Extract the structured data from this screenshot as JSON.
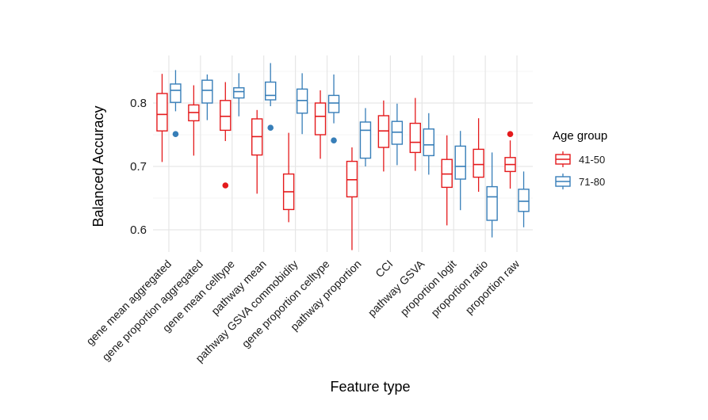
{
  "chart_data": {
    "type": "boxplot",
    "xlabel": "Feature type",
    "ylabel": "Balanced Accuracy",
    "ylim": [
      0.565,
      0.875
    ],
    "yticks": [
      0.6,
      0.7,
      0.8
    ],
    "grid": true,
    "legend": {
      "title": "Age group",
      "placement": "right",
      "entries": [
        {
          "label": "41-50",
          "color": "#E41A1C"
        },
        {
          "label": "71-80",
          "color": "#377EB8"
        }
      ]
    },
    "categories": [
      "gene mean aggregated",
      "gene proportion aggregated",
      "gene mean celltype",
      "pathway mean",
      "pathway GSVA commobidity",
      "gene proportion celltype",
      "pathway proportion",
      "CCI",
      "pathway GSVA",
      "proportion logit",
      "proportion ratio",
      "proportion raw"
    ],
    "series": [
      {
        "name": "41-50",
        "color": "#E41A1C",
        "boxes": [
          {
            "min": 0.707,
            "q1": 0.756,
            "median": 0.782,
            "q3": 0.815,
            "max": 0.846,
            "outliers": []
          },
          {
            "min": 0.717,
            "q1": 0.772,
            "median": 0.785,
            "q3": 0.797,
            "max": 0.828,
            "outliers": []
          },
          {
            "min": 0.74,
            "q1": 0.757,
            "median": 0.779,
            "q3": 0.804,
            "max": 0.833,
            "outliers": [
              0.67
            ]
          },
          {
            "min": 0.657,
            "q1": 0.718,
            "median": 0.747,
            "q3": 0.775,
            "max": 0.789,
            "outliers": []
          },
          {
            "min": 0.612,
            "q1": 0.632,
            "median": 0.66,
            "q3": 0.688,
            "max": 0.753,
            "outliers": []
          },
          {
            "min": 0.712,
            "q1": 0.75,
            "median": 0.779,
            "q3": 0.8,
            "max": 0.82,
            "outliers": []
          },
          {
            "min": 0.568,
            "q1": 0.652,
            "median": 0.679,
            "q3": 0.708,
            "max": 0.73,
            "outliers": []
          },
          {
            "min": 0.692,
            "q1": 0.73,
            "median": 0.756,
            "q3": 0.78,
            "max": 0.804,
            "outliers": []
          },
          {
            "min": 0.693,
            "q1": 0.722,
            "median": 0.738,
            "q3": 0.768,
            "max": 0.808,
            "outliers": []
          },
          {
            "min": 0.607,
            "q1": 0.667,
            "median": 0.688,
            "q3": 0.711,
            "max": 0.749,
            "outliers": []
          },
          {
            "min": 0.66,
            "q1": 0.683,
            "median": 0.703,
            "q3": 0.727,
            "max": 0.776,
            "outliers": []
          },
          {
            "min": 0.665,
            "q1": 0.692,
            "median": 0.703,
            "q3": 0.714,
            "max": 0.741,
            "outliers": [
              0.751
            ]
          }
        ]
      },
      {
        "name": "71-80",
        "color": "#377EB8",
        "boxes": [
          {
            "min": 0.787,
            "q1": 0.801,
            "median": 0.82,
            "q3": 0.83,
            "max": 0.852,
            "outliers": [
              0.751
            ]
          },
          {
            "min": 0.773,
            "q1": 0.8,
            "median": 0.82,
            "q3": 0.836,
            "max": 0.845,
            "outliers": []
          },
          {
            "min": 0.779,
            "q1": 0.808,
            "median": 0.818,
            "q3": 0.824,
            "max": 0.847,
            "outliers": []
          },
          {
            "min": 0.795,
            "q1": 0.805,
            "median": 0.812,
            "q3": 0.833,
            "max": 0.863,
            "outliers": [
              0.761
            ]
          },
          {
            "min": 0.751,
            "q1": 0.784,
            "median": 0.804,
            "q3": 0.822,
            "max": 0.847,
            "outliers": []
          },
          {
            "min": 0.768,
            "q1": 0.785,
            "median": 0.8,
            "q3": 0.812,
            "max": 0.845,
            "outliers": [
              0.741
            ]
          },
          {
            "min": 0.7,
            "q1": 0.713,
            "median": 0.757,
            "q3": 0.77,
            "max": 0.792,
            "outliers": []
          },
          {
            "min": 0.702,
            "q1": 0.735,
            "median": 0.754,
            "q3": 0.771,
            "max": 0.799,
            "outliers": []
          },
          {
            "min": 0.687,
            "q1": 0.717,
            "median": 0.734,
            "q3": 0.759,
            "max": 0.784,
            "outliers": []
          },
          {
            "min": 0.631,
            "q1": 0.68,
            "median": 0.7,
            "q3": 0.732,
            "max": 0.756,
            "outliers": []
          },
          {
            "min": 0.588,
            "q1": 0.615,
            "median": 0.652,
            "q3": 0.668,
            "max": 0.722,
            "outliers": []
          },
          {
            "min": 0.604,
            "q1": 0.629,
            "median": 0.645,
            "q3": 0.664,
            "max": 0.692,
            "outliers": []
          }
        ]
      }
    ]
  }
}
